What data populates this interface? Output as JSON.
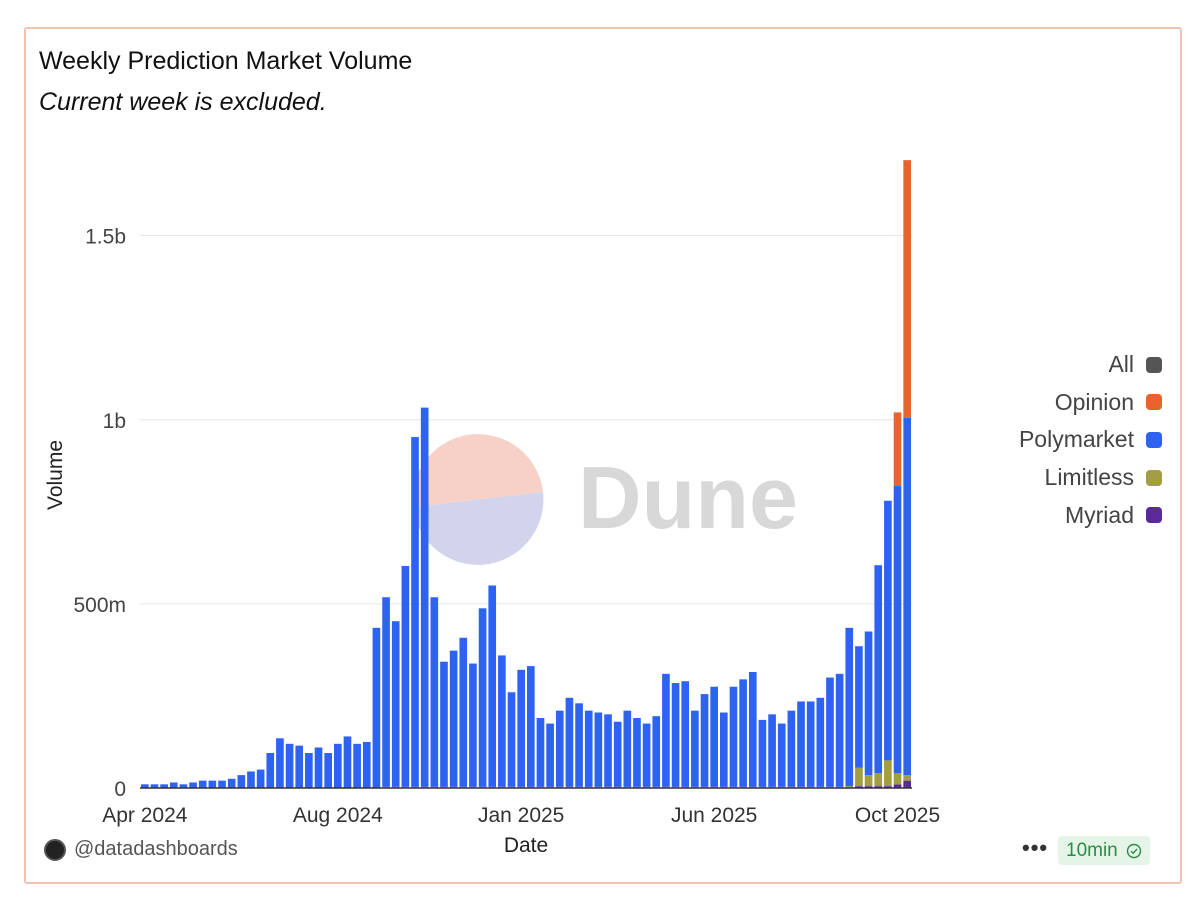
{
  "header": {
    "title": "Weekly Prediction Market Volume",
    "subtitle": "Current week is excluded."
  },
  "watermark": {
    "text": "Dune"
  },
  "footer": {
    "author": "@datadashboards",
    "menu_label": "•••",
    "refresh_label": "10min"
  },
  "legend": [
    {
      "name": "All",
      "color": "#555555"
    },
    {
      "name": "Opinion",
      "color": "#e8642c"
    },
    {
      "name": "Polymarket",
      "color": "#2d63f0"
    },
    {
      "name": "Limitless",
      "color": "#a49e42"
    },
    {
      "name": "Myriad",
      "color": "#5b2a9a"
    }
  ],
  "chart_data": {
    "type": "bar",
    "stacked": true,
    "title": "Weekly Prediction Market Volume",
    "subtitle": "Current week is excluded.",
    "xlabel": "Date",
    "ylabel": "Volume",
    "ylim": [
      0,
      1.7
    ],
    "y_unit": "billions USD",
    "y_ticks": [
      {
        "value": 0,
        "label": "0"
      },
      {
        "value": 0.5,
        "label": "500m"
      },
      {
        "value": 1.0,
        "label": "1b"
      },
      {
        "value": 1.5,
        "label": "1.5b"
      }
    ],
    "x_ticks": [
      {
        "index": 0,
        "label": "Apr 2024"
      },
      {
        "index": 20,
        "label": "Aug 2024"
      },
      {
        "index": 39,
        "label": "Jan 2025"
      },
      {
        "index": 59,
        "label": "Jun 2025"
      },
      {
        "index": 78,
        "label": "Oct 2025"
      }
    ],
    "grid": true,
    "legend_position": "right",
    "categories_note": "weekly, Apr 2024 to Oct 2025",
    "series": [
      {
        "name": "Myriad",
        "color": "#5b2a9a",
        "values": [
          0,
          0,
          0,
          0,
          0,
          0,
          0,
          0,
          0,
          0,
          0,
          0,
          0,
          0,
          0,
          0,
          0,
          0,
          0,
          0,
          0,
          0,
          0,
          0,
          0,
          0,
          0,
          0,
          0,
          0,
          0,
          0,
          0,
          0,
          0,
          0,
          0,
          0,
          0,
          0,
          0,
          0,
          0,
          0,
          0,
          0,
          0,
          0,
          0,
          0,
          0,
          0,
          0,
          0,
          0,
          0,
          0,
          0,
          0,
          0,
          0,
          0,
          0,
          0,
          0,
          0,
          0,
          0,
          0,
          0,
          0,
          0,
          0,
          0,
          0.005,
          0.005,
          0.005,
          0.005,
          0.01,
          0.02
        ]
      },
      {
        "name": "Limitless",
        "color": "#a49e42",
        "values": [
          0,
          0,
          0,
          0,
          0,
          0,
          0,
          0,
          0,
          0,
          0,
          0,
          0,
          0,
          0,
          0,
          0,
          0,
          0,
          0,
          0,
          0,
          0,
          0,
          0,
          0.003,
          0.003,
          0.003,
          0.003,
          0.003,
          0.003,
          0.003,
          0.003,
          0.003,
          0.003,
          0.003,
          0.003,
          0.003,
          0.003,
          0.003,
          0.003,
          0.003,
          0.003,
          0.003,
          0.003,
          0.003,
          0.003,
          0.003,
          0.003,
          0.003,
          0.003,
          0.003,
          0.003,
          0.003,
          0.003,
          0.003,
          0.003,
          0.003,
          0.003,
          0.003,
          0.003,
          0.003,
          0.003,
          0.003,
          0.003,
          0.003,
          0.003,
          0.003,
          0.003,
          0.003,
          0.003,
          0.003,
          0.003,
          0.005,
          0.05,
          0.03,
          0.035,
          0.07,
          0.03,
          0.015
        ]
      },
      {
        "name": "Polymarket",
        "color": "#2d63f0",
        "values": [
          0.01,
          0.01,
          0.01,
          0.015,
          0.01,
          0.015,
          0.02,
          0.02,
          0.02,
          0.025,
          0.035,
          0.045,
          0.05,
          0.095,
          0.135,
          0.12,
          0.115,
          0.095,
          0.11,
          0.095,
          0.12,
          0.14,
          0.12,
          0.125,
          0.435,
          0.515,
          0.45,
          0.6,
          0.95,
          1.03,
          0.515,
          0.34,
          0.37,
          0.405,
          0.335,
          0.485,
          0.547,
          0.357,
          0.257,
          0.318,
          0.328,
          0.187,
          0.172,
          0.207,
          0.242,
          0.227,
          0.207,
          0.202,
          0.197,
          0.177,
          0.207,
          0.187,
          0.172,
          0.192,
          0.307,
          0.282,
          0.287,
          0.207,
          0.252,
          0.272,
          0.202,
          0.272,
          0.292,
          0.312,
          0.182,
          0.197,
          0.172,
          0.207,
          0.232,
          0.232,
          0.242,
          0.297,
          0.307,
          0.43,
          0.33,
          0.39,
          0.565,
          0.705,
          0.78,
          0.97
        ]
      },
      {
        "name": "Opinion",
        "color": "#e8642c",
        "values": [
          0,
          0,
          0,
          0,
          0,
          0,
          0,
          0,
          0,
          0,
          0,
          0,
          0,
          0,
          0,
          0,
          0,
          0,
          0,
          0,
          0,
          0,
          0,
          0,
          0,
          0,
          0,
          0,
          0,
          0,
          0,
          0,
          0,
          0,
          0,
          0,
          0,
          0,
          0,
          0,
          0,
          0,
          0,
          0,
          0,
          0,
          0,
          0,
          0,
          0,
          0,
          0,
          0,
          0,
          0,
          0,
          0,
          0,
          0,
          0,
          0,
          0,
          0,
          0,
          0,
          0,
          0,
          0,
          0,
          0,
          0,
          0,
          0,
          0,
          0,
          0,
          0,
          0,
          0.2,
          0.7
        ]
      }
    ]
  }
}
